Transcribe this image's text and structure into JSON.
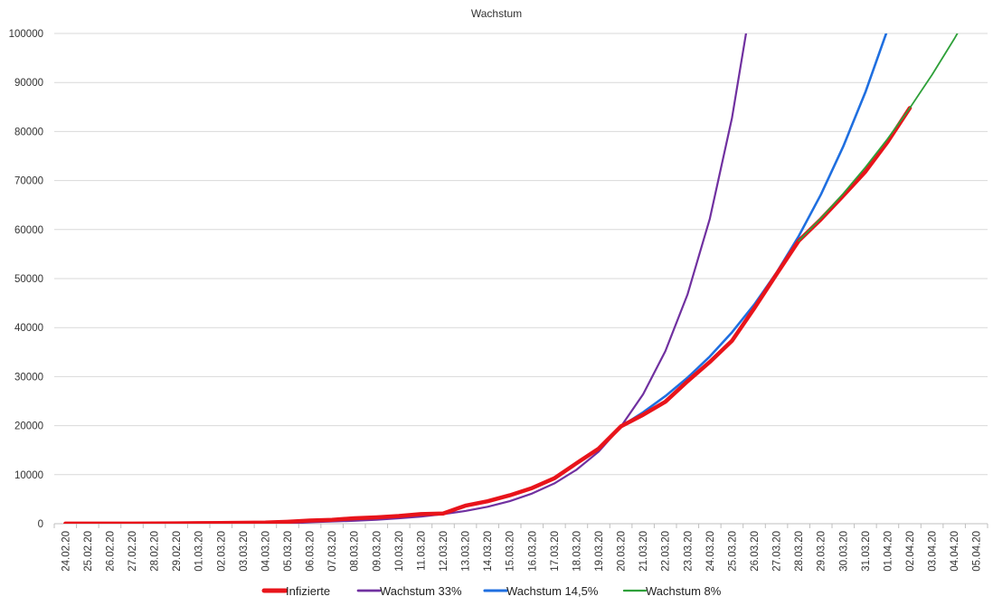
{
  "chart_data": {
    "type": "line",
    "title": "Wachstum",
    "xlabel": "",
    "ylabel": "",
    "ylim": [
      0,
      100000
    ],
    "yticks": [
      "0",
      "10000",
      "20000",
      "30000",
      "40000",
      "50000",
      "60000",
      "70000",
      "80000",
      "90000",
      "100000"
    ],
    "grid": true,
    "legend_position": "bottom",
    "categories": [
      "24.02.20",
      "25.02.20",
      "26.02.20",
      "27.02.20",
      "28.02.20",
      "29.02.20",
      "01.03.20",
      "02.03.20",
      "03.03.20",
      "04.03.20",
      "05.03.20",
      "06.03.20",
      "07.03.20",
      "08.03.20",
      "09.03.20",
      "10.03.20",
      "11.03.20",
      "12.03.20",
      "13.03.20",
      "14.03.20",
      "15.03.20",
      "16.03.20",
      "17.03.20",
      "18.03.20",
      "19.03.20",
      "20.03.20",
      "21.03.20",
      "22.03.20",
      "23.03.20",
      "24.03.20",
      "25.03.20",
      "26.03.20",
      "27.03.20",
      "28.03.20",
      "29.03.20",
      "30.03.20",
      "31.03.20",
      "01.04.20",
      "02.04.20",
      "03.04.20",
      "04.04.20",
      "05.04.20"
    ],
    "series": [
      {
        "name": "Infizierte",
        "color": "#e8141b",
        "values": [
          16,
          18,
          21,
          26,
          53,
          66,
          117,
          150,
          188,
          240,
          400,
          639,
          795,
          1112,
          1296,
          1567,
          1966,
          2078,
          3675,
          4585,
          5795,
          7272,
          9257,
          12327,
          15320,
          19848,
          22213,
          24873,
          29056,
          32986,
          37323,
          43938,
          50871,
          57695,
          62095,
          66885,
          71808,
          77872,
          84794,
          null,
          null,
          null
        ]
      },
      {
        "name": "Wachstum 33%",
        "color": "#7030a0",
        "values": [
          0,
          0,
          0,
          0,
          0,
          0,
          0,
          0,
          0,
          0,
          0,
          300,
          450,
          600,
          800,
          1100,
          1450,
          1950,
          2600,
          3450,
          4600,
          6150,
          8200,
          11000,
          14700,
          19800,
          26400,
          35200,
          46800,
          62200,
          82800,
          110100,
          null,
          null,
          null,
          null,
          null,
          null,
          null,
          null,
          null,
          null
        ]
      },
      {
        "name": "Wachstum 14,5%",
        "color": "#1f6fe0",
        "values": [
          null,
          null,
          null,
          null,
          null,
          null,
          null,
          null,
          null,
          null,
          null,
          null,
          null,
          null,
          null,
          null,
          null,
          null,
          null,
          null,
          null,
          null,
          null,
          null,
          null,
          19848,
          22726,
          26020,
          29800,
          34100,
          39050,
          44700,
          51200,
          58650,
          67150,
          76900,
          88000,
          100800,
          null,
          null,
          null,
          null
        ]
      },
      {
        "name": "Wachstum 8%",
        "color": "#2ea039",
        "values": [
          null,
          null,
          null,
          null,
          null,
          null,
          null,
          null,
          null,
          null,
          null,
          null,
          null,
          null,
          null,
          null,
          null,
          null,
          null,
          null,
          null,
          null,
          null,
          null,
          null,
          null,
          null,
          null,
          null,
          null,
          null,
          null,
          null,
          57695,
          62310,
          67300,
          72680,
          78500,
          84780,
          91560,
          98890,
          106800
        ]
      }
    ]
  }
}
